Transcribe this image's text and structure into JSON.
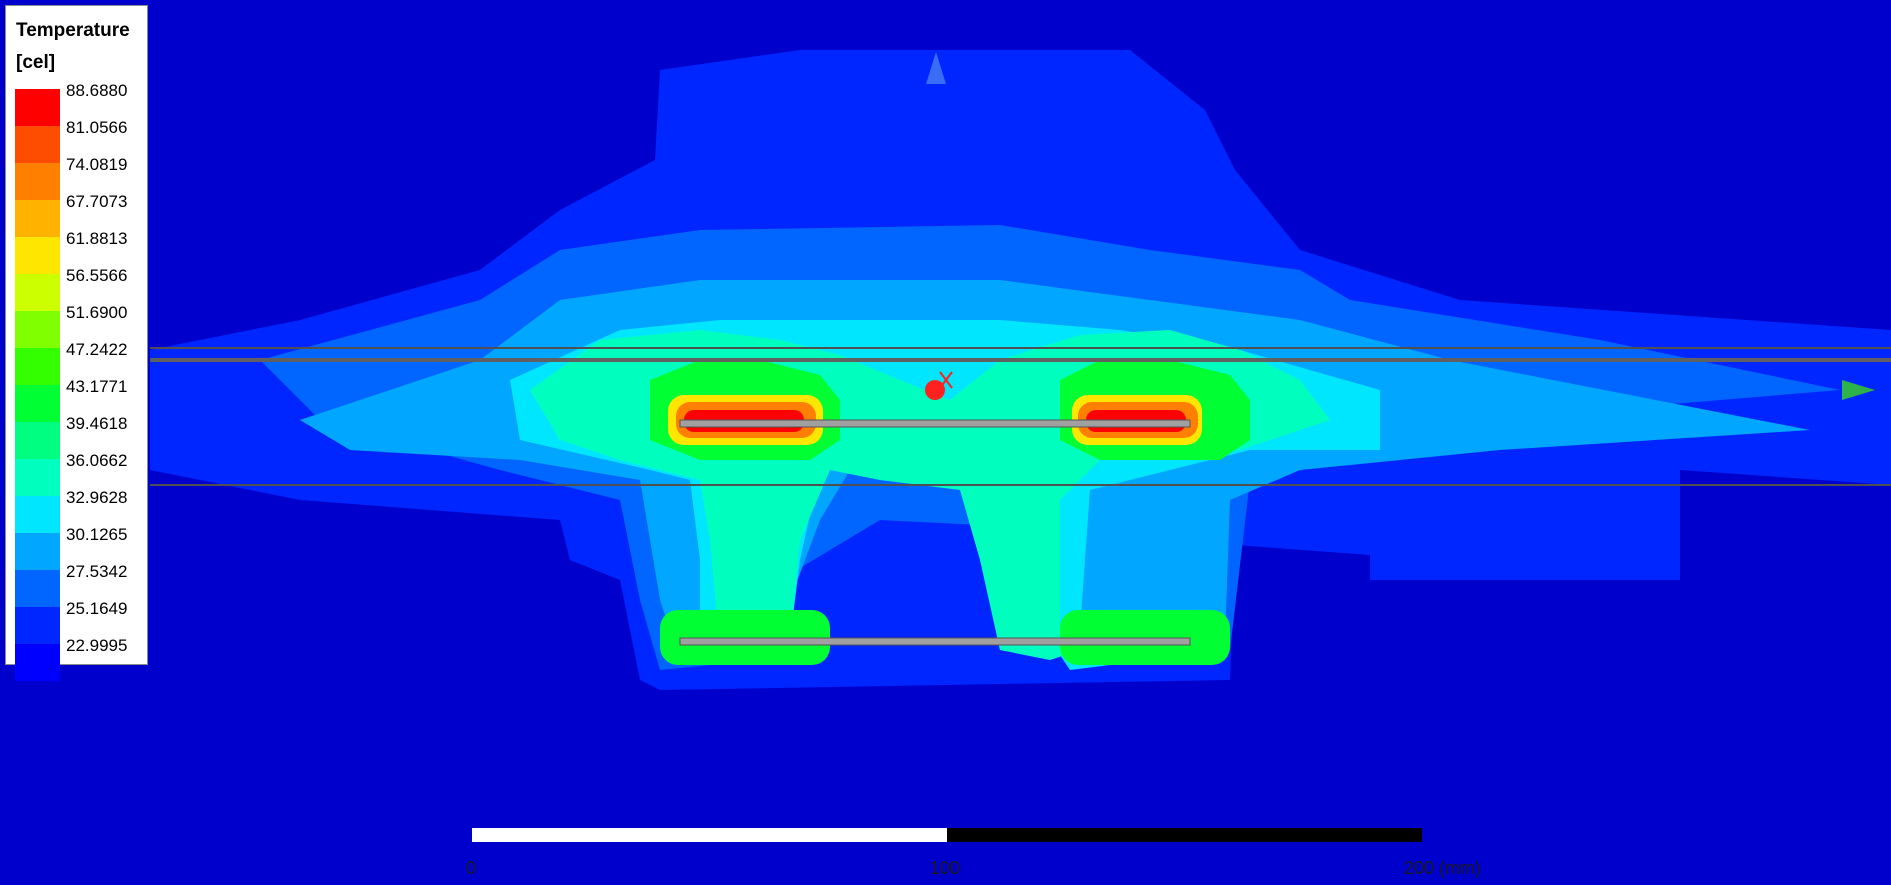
{
  "legend": {
    "title": "Temperature",
    "unit": "[cel]",
    "levels": [
      {
        "value": "88.6880",
        "color": "#ff0000"
      },
      {
        "value": "81.0566",
        "color": "#ff4d00"
      },
      {
        "value": "74.0819",
        "color": "#ff8000"
      },
      {
        "value": "67.7073",
        "color": "#ffb300"
      },
      {
        "value": "61.8813",
        "color": "#ffe600"
      },
      {
        "value": "56.5566",
        "color": "#ccff00"
      },
      {
        "value": "51.6900",
        "color": "#80ff00"
      },
      {
        "value": "47.2422",
        "color": "#33ff00"
      },
      {
        "value": "43.1771",
        "color": "#00ff33"
      },
      {
        "value": "39.4618",
        "color": "#00ff80"
      },
      {
        "value": "36.0662",
        "color": "#00ffbf"
      },
      {
        "value": "32.9628",
        "color": "#00e6ff"
      },
      {
        "value": "30.1265",
        "color": "#00a6ff"
      },
      {
        "value": "27.5342",
        "color": "#0066ff"
      },
      {
        "value": "25.1649",
        "color": "#0026ff"
      },
      {
        "value": "22.9995",
        "color": "#0000ff"
      }
    ]
  },
  "scale_bar": {
    "labels": [
      "0",
      "100",
      "200 (mm)"
    ]
  },
  "colors": {
    "background": "#0000cc",
    "conductor": "#a0a0a0",
    "marker": "#ff2020",
    "axis_triad_y": "#3b6cf5",
    "axis_triad_x": "#2db34a"
  }
}
